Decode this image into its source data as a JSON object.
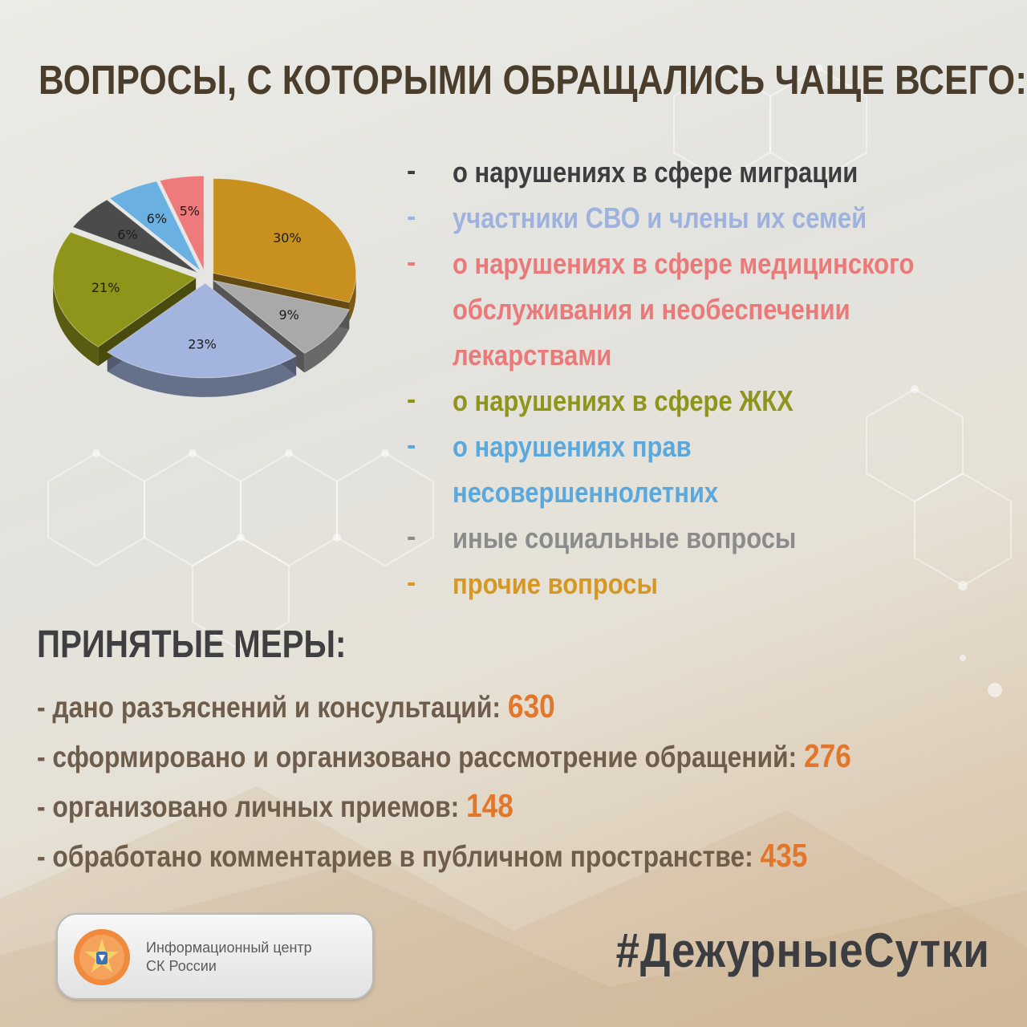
{
  "title": "ВОПРОСЫ, С КОТОРЫМИ ОБРАЩАЛИСЬ ЧАЩЕ ВСЕГО:",
  "chart_data": {
    "type": "pie",
    "slices": [
      {
        "label": "30%",
        "value": 30,
        "color": "#c8911f"
      },
      {
        "label": "9%",
        "value": 9,
        "color": "#a9a9a9"
      },
      {
        "label": "23%",
        "value": 23,
        "color": "#a3b4df"
      },
      {
        "label": "21%",
        "value": 21,
        "color": "#8f951a"
      },
      {
        "label": "6%",
        "value": 6,
        "color": "#4b4b4b"
      },
      {
        "label": "6%",
        "value": 6,
        "color": "#6ab1e2"
      },
      {
        "label": "5%",
        "value": 5,
        "color": "#ee7a7c"
      }
    ]
  },
  "legend": [
    {
      "dash": "-",
      "text": "о нарушениях в сфере миграции",
      "color": "#3c3d3f"
    },
    {
      "dash": "-",
      "text": "участники СВО и члены их семей",
      "color": "#9eb2dd"
    },
    {
      "dash": "-",
      "text": "о нарушениях в сфере медицинского",
      "color": "#ea7a79"
    },
    {
      "dash": "",
      "text": "обслуживания и необеспечении",
      "color": "#ea7a79"
    },
    {
      "dash": "",
      "text": "лекарствами",
      "color": "#ea7a79"
    },
    {
      "dash": "-",
      "text": "о нарушениях в сфере ЖКХ",
      "color": "#8f951a"
    },
    {
      "dash": "-",
      "text": "о нарушениях прав",
      "color": "#5aa8dc"
    },
    {
      "dash": "",
      "text": "несовершеннолетних",
      "color": "#5aa8dc"
    },
    {
      "dash": "-",
      "text": "иные социальные вопросы",
      "color": "#8b8b8b"
    },
    {
      "dash": "-",
      "text": "прочие вопросы",
      "color": "#d69823"
    }
  ],
  "measures_title": "ПРИНЯТЫЕ МЕРЫ:",
  "measures": [
    {
      "label": "- дано разъяснений и консультаций: ",
      "value": "630"
    },
    {
      "label": "- сформировано и организовано рассмотрение обращений: ",
      "value": "276"
    },
    {
      "label": "- организовано личных приемов: ",
      "value": "148"
    },
    {
      "label": "- обработано комментариев в публичном пространстве: ",
      "value": "435"
    }
  ],
  "badge": {
    "line1": "Информационный центр",
    "line2": "СК России"
  },
  "hashtag": "#ДежурныеСутки"
}
